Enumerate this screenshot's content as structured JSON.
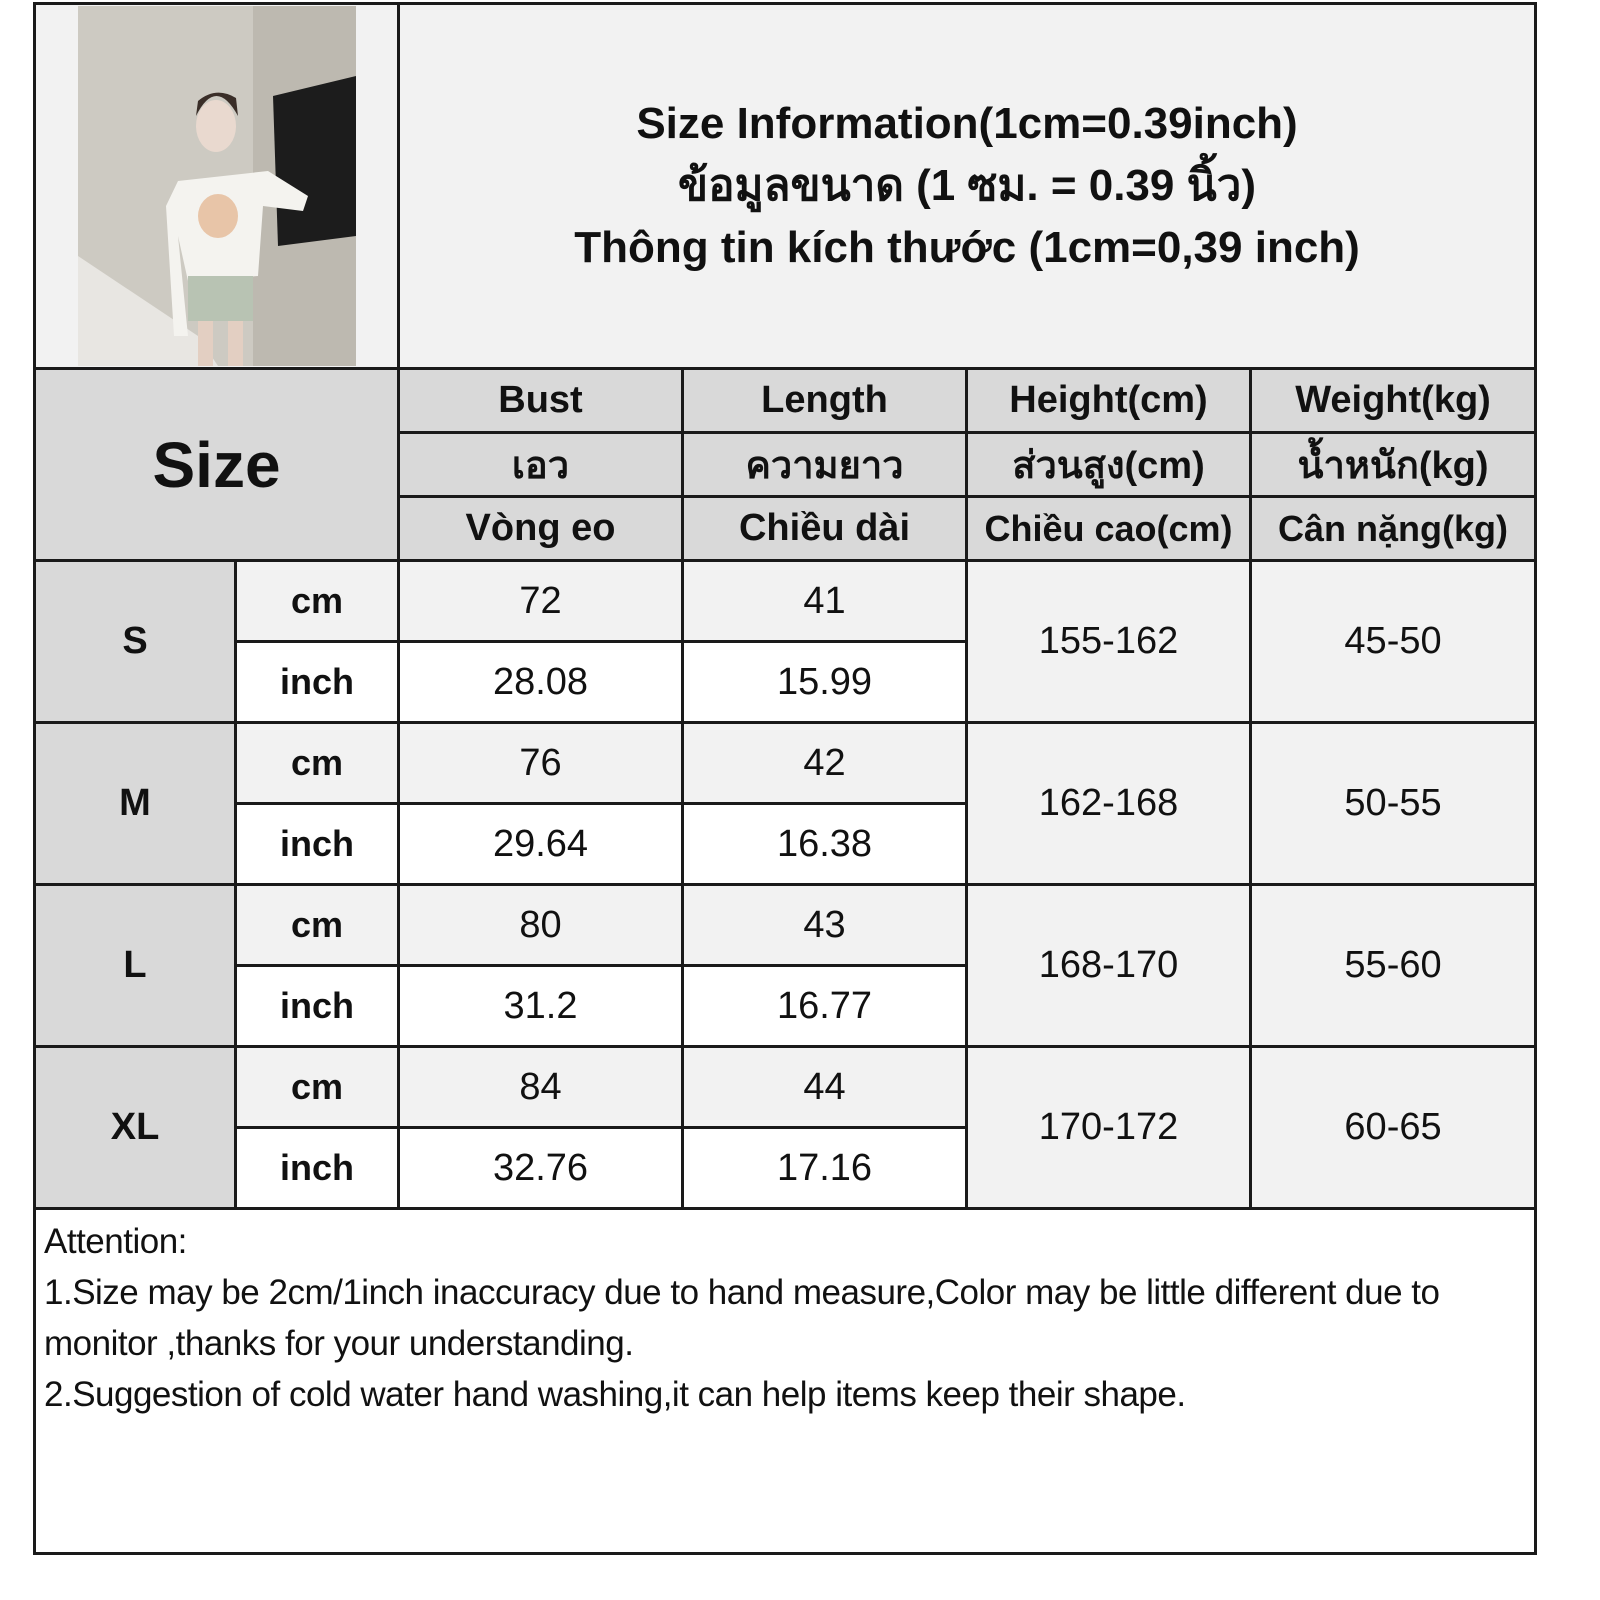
{
  "title": {
    "lines": [
      "Size Information(1cm=0.39inch)",
      "ข้อมูลขนาด (1 ซม. = 0.39 นิ้ว)",
      "Thông tin kích thước (1cm=0,39 inch)"
    ]
  },
  "photo": {
    "icon": "product-photo-woman-white-off-shoulder-top"
  },
  "header": {
    "size_label": "Size",
    "columns": [
      {
        "en": "Bust",
        "th": "เอว",
        "vi": "Vòng eo"
      },
      {
        "en": "Length",
        "th": "ความยาว",
        "vi": "Chiều dài"
      },
      {
        "en": "Height(cm)",
        "th": "ส่วนสูง(cm)",
        "vi": "Chiều cao(cm)"
      },
      {
        "en": "Weight(kg)",
        "th": "น้ำหนัก(kg)",
        "vi": "Cân nặng(kg)"
      }
    ]
  },
  "rows": [
    {
      "size": "S",
      "cm_label": "cm",
      "inch_label": "inch",
      "bust_cm": "72",
      "length_cm": "41",
      "bust_inch": "28.08",
      "length_inch": "15.99",
      "height": "155-162",
      "weight": "45-50"
    },
    {
      "size": "M",
      "cm_label": "cm",
      "inch_label": "inch",
      "bust_cm": "76",
      "length_cm": "42",
      "bust_inch": "29.64",
      "length_inch": "16.38",
      "height": "162-168",
      "weight": "50-55"
    },
    {
      "size": "L",
      "cm_label": "cm",
      "inch_label": "inch",
      "bust_cm": "80",
      "length_cm": "43",
      "bust_inch": "31.2",
      "length_inch": "16.77",
      "height": "168-170",
      "weight": "55-60"
    },
    {
      "size": "XL",
      "cm_label": "cm",
      "inch_label": "inch",
      "bust_cm": "84",
      "length_cm": "44",
      "bust_inch": "32.76",
      "length_inch": "17.16",
      "height": "170-172",
      "weight": "60-65"
    }
  ],
  "notes": {
    "heading": "Attention:",
    "items": [
      "1.Size may be 2cm/1inch inaccuracy due to hand measure,Color may be little different due to monitor ,thanks for your understanding.",
      "2.Suggestion of cold water hand washing,it can help items keep their shape."
    ]
  },
  "colors": {
    "header_gray": "#d9d9d9",
    "light_gray": "#f2f2f2",
    "border": "#1a1a1a"
  }
}
